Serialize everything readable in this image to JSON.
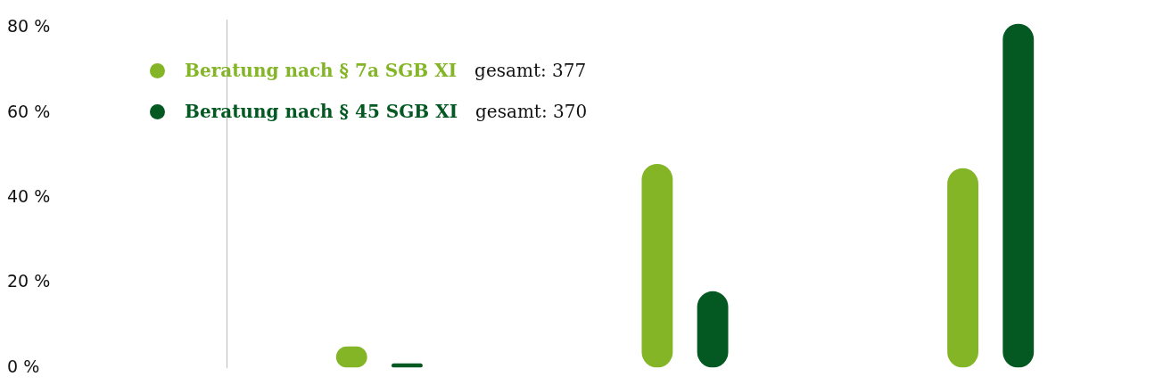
{
  "chart_data": {
    "type": "bar",
    "categories": [
      null,
      null,
      null
    ],
    "series": [
      {
        "name": "Beratung nach § 7a SGB XI",
        "color": "#84b527",
        "values": [
          5,
          48,
          47
        ]
      },
      {
        "name": "Beratung nach § 45 SGB XI",
        "color": "#035921",
        "values": [
          1,
          18,
          81
        ]
      }
    ],
    "annotations": [
      "gesamt: 377",
      "gesamt: 370"
    ],
    "ylim": [
      0,
      82
    ],
    "yticks": [
      {
        "value": 0,
        "label": "0 %"
      },
      {
        "value": 20,
        "label": "20 %"
      },
      {
        "value": 40,
        "label": "40 %"
      },
      {
        "value": 60,
        "label": "60 %"
      },
      {
        "value": 80,
        "label": "80 %"
      }
    ],
    "grid": false,
    "legend": "top left"
  }
}
